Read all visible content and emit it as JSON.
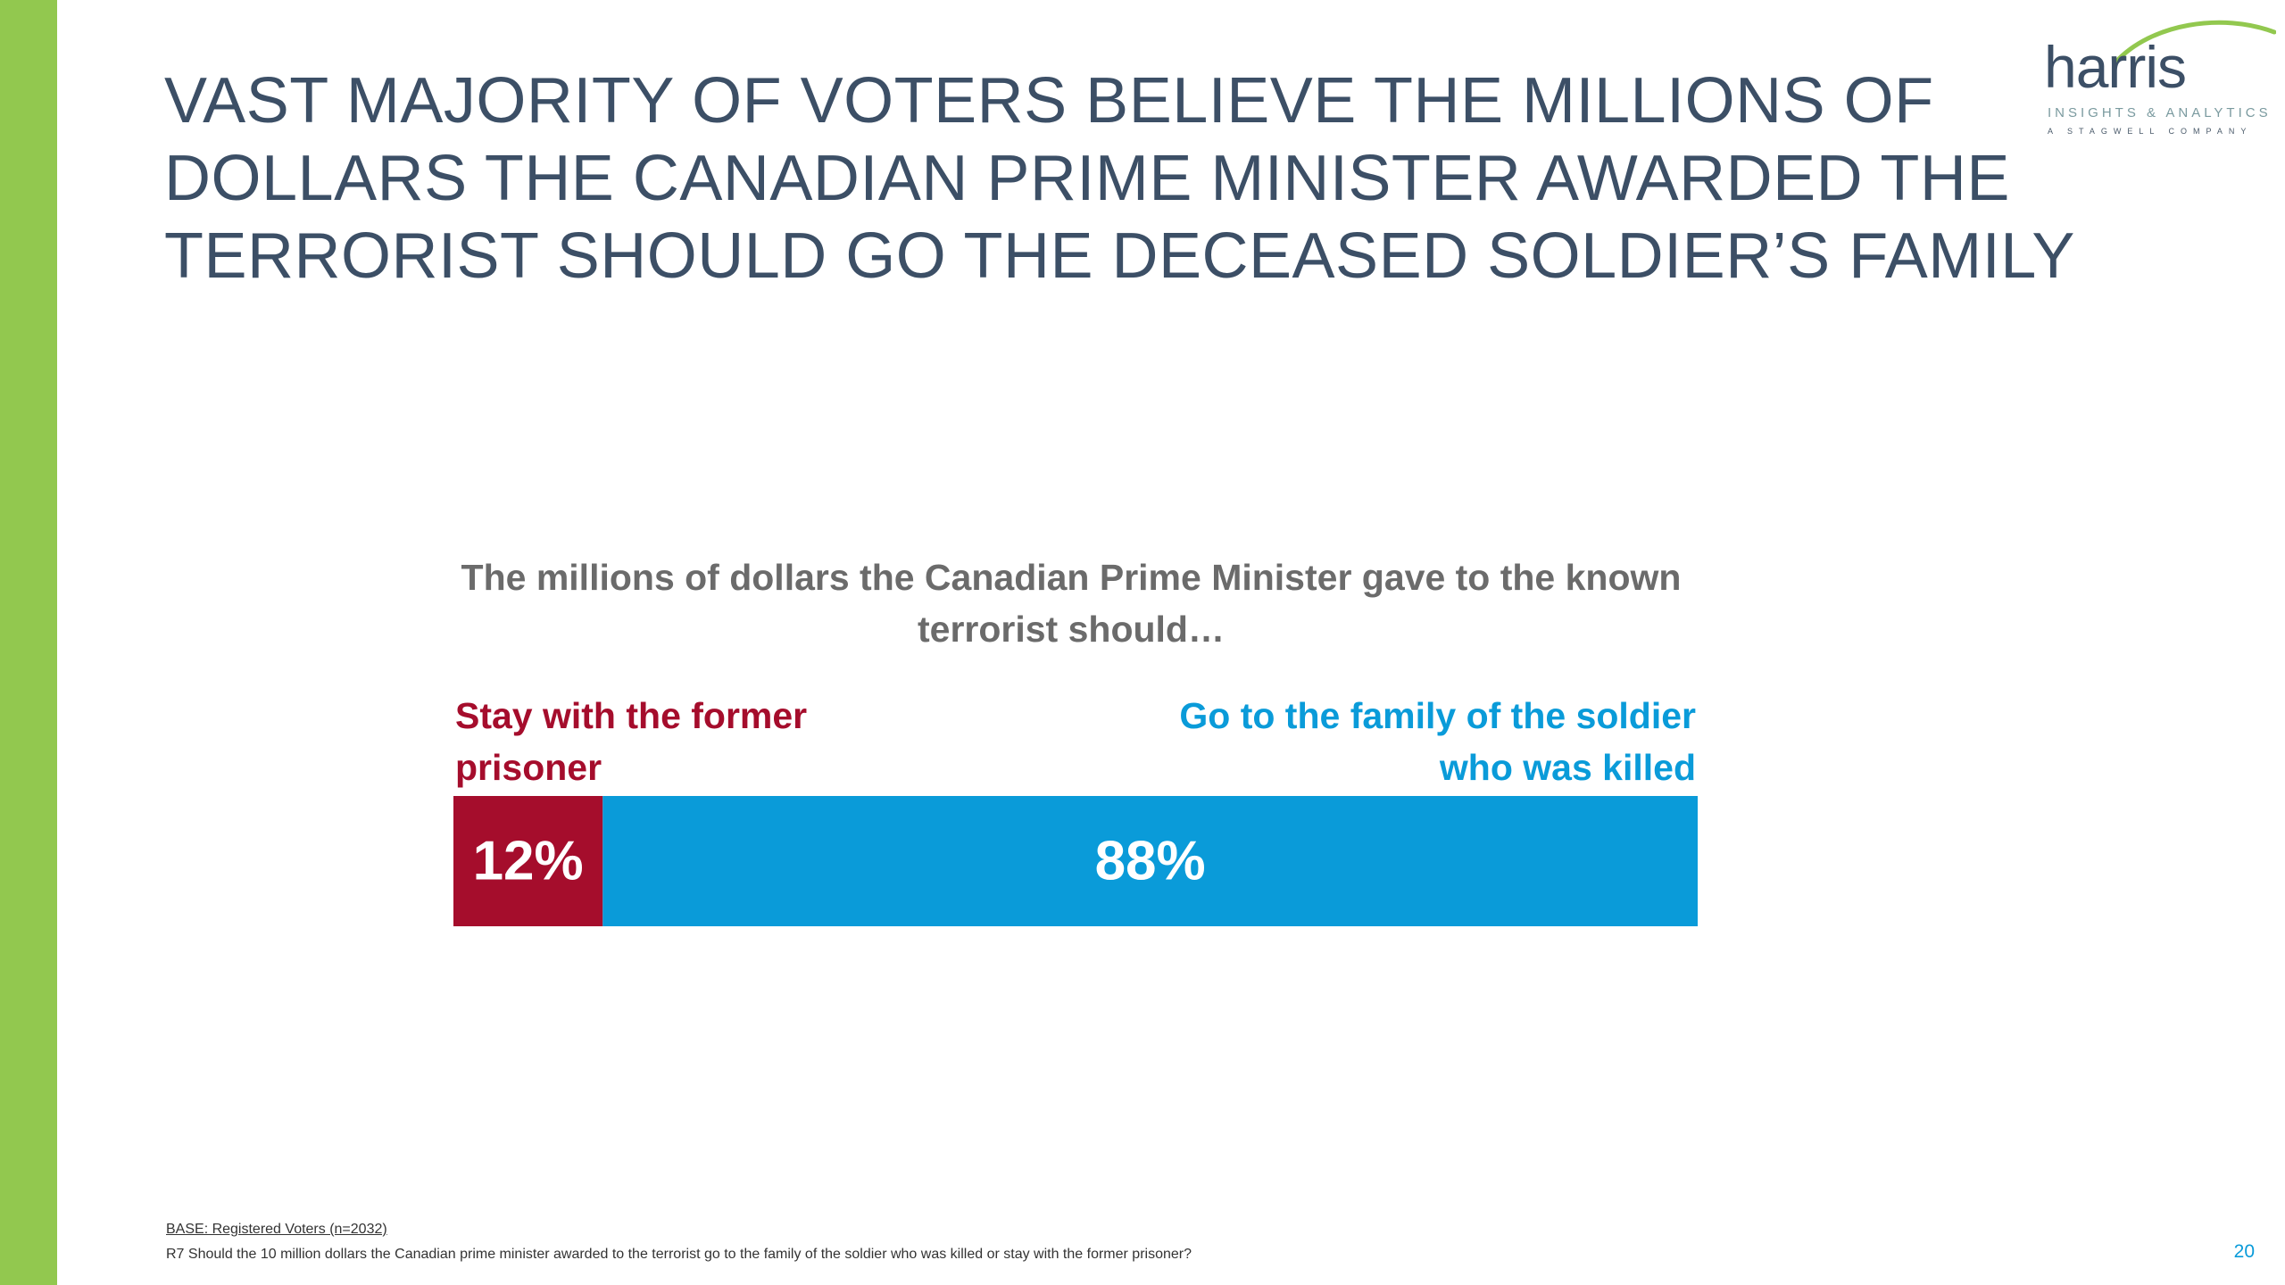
{
  "slide": {
    "title_lines": [
      "VAST MAJORITY OF VOTERS BELIEVE THE MILLIONS OF",
      "DOLLARS THE CANADIAN PRIME MINISTER AWARDED THE",
      "TERRORIST SHOULD GO THE DECEASED SOLDIER’S FAMILY"
    ],
    "page_number": "20",
    "footnote_base": "BASE: Registered Voters (n=2032)",
    "footnote_question": "R7 Should the 10 million dollars the Canadian prime minister awarded to the terrorist go to the family of the soldier who was killed or stay with the former prisoner?"
  },
  "logo": {
    "wordmark": "harris",
    "tagline": "INSIGHTS & ANALYTICS",
    "subline": "A STAGWELL COMPANY",
    "swoosh_color": "#92c84f"
  },
  "colors": {
    "accent_green": "#92c84f",
    "title_navy": "#3c4f66",
    "series_stay": "#a50d2c",
    "series_go": "#0a9bd9"
  },
  "chart_data": {
    "type": "bar",
    "orientation": "horizontal-stacked-100",
    "title": "The millions of dollars the Canadian Prime Minister gave to the known terrorist should…",
    "categories": [
      "Stay with the former prisoner",
      "Go to the family of the soldier who was killed"
    ],
    "values": [
      12,
      88
    ],
    "value_labels": [
      "12%",
      "88%"
    ],
    "unit": "%",
    "xlim": [
      0,
      100
    ],
    "grid": false,
    "legend": "labels above bar ends"
  }
}
